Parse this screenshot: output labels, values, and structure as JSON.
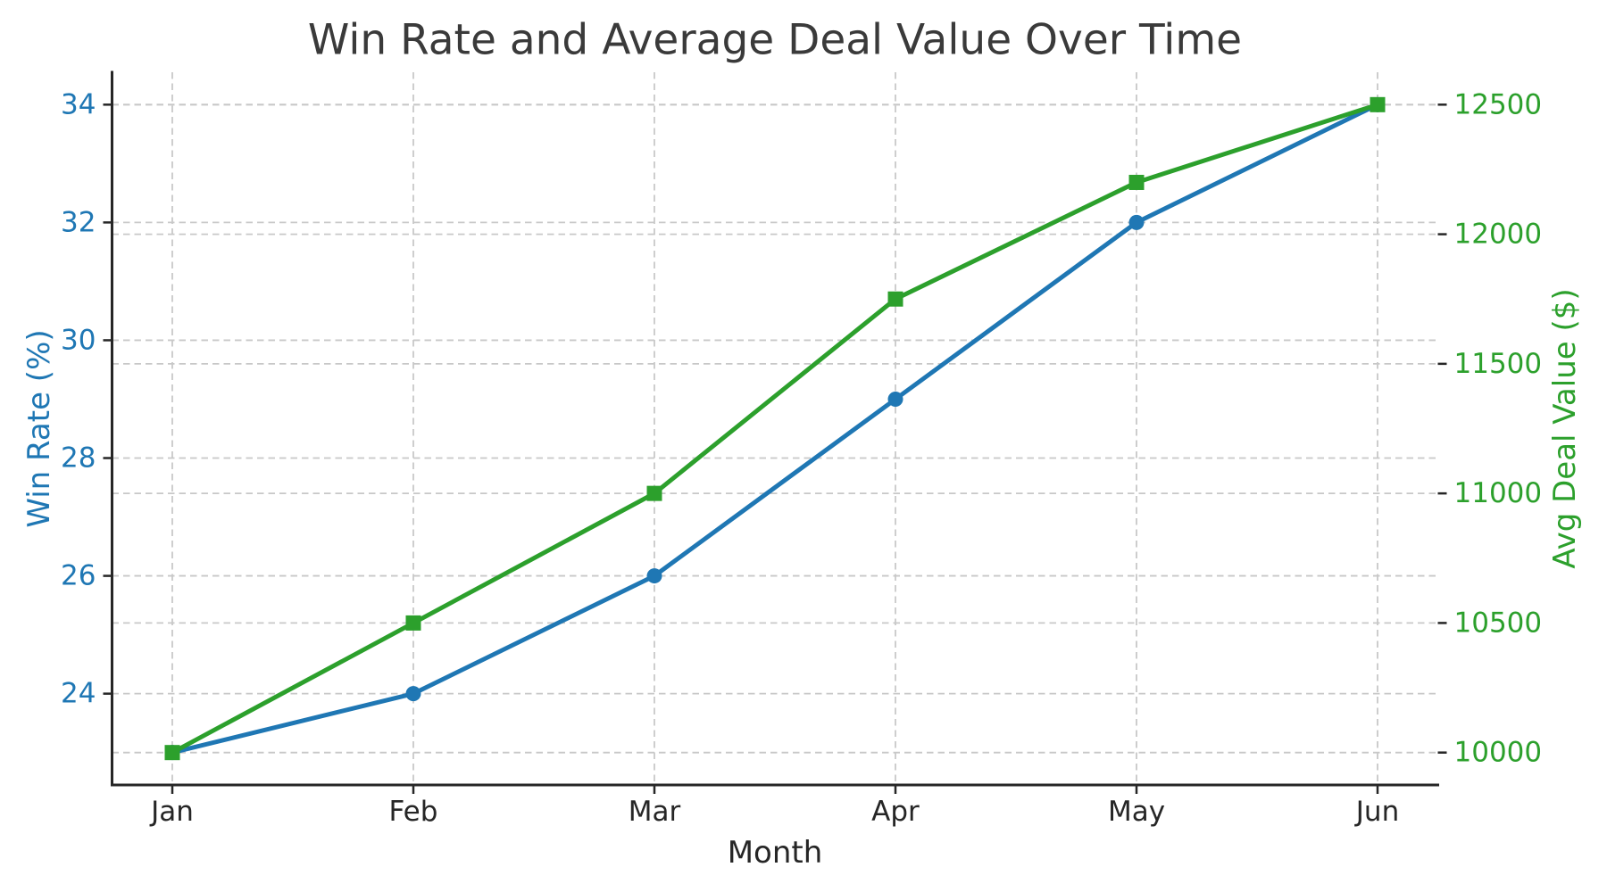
{
  "figure": {
    "background": "#ffffff"
  },
  "chart_data": {
    "type": "line",
    "title": "Win Rate and Average Deal Value Over Time",
    "title_color": "#3a3a3a",
    "xlabel": "Month",
    "categories": [
      "Jan",
      "Feb",
      "Mar",
      "Apr",
      "May",
      "Jun"
    ],
    "series": [
      {
        "name": "Win Rate (%)",
        "axis": "left",
        "color": "#1f77b4",
        "marker": "circle",
        "values": [
          23,
          24,
          26,
          29,
          32,
          34
        ]
      },
      {
        "name": "Avg Deal Value ($)",
        "axis": "right",
        "color": "#2ca02c",
        "marker": "square",
        "values": [
          10000,
          10500,
          11000,
          11750,
          12200,
          12500
        ]
      }
    ],
    "axes": {
      "left": {
        "label": "Win Rate (%)",
        "color": "#1f77b4",
        "ticks": [
          24,
          26,
          28,
          30,
          32,
          34
        ],
        "range": [
          22.45,
          34.55
        ]
      },
      "right": {
        "label": "Avg Deal Value ($)",
        "color": "#2ca02c",
        "ticks": [
          10000,
          10500,
          11000,
          11500,
          12000,
          12500
        ],
        "range": [
          9875,
          12625
        ]
      },
      "x": {
        "label": "Month",
        "color": "#262626"
      }
    },
    "grid": {
      "show": true,
      "style": "dashed",
      "color": "#c8c8c8"
    },
    "spine_color": "#262626",
    "legend": "none"
  }
}
